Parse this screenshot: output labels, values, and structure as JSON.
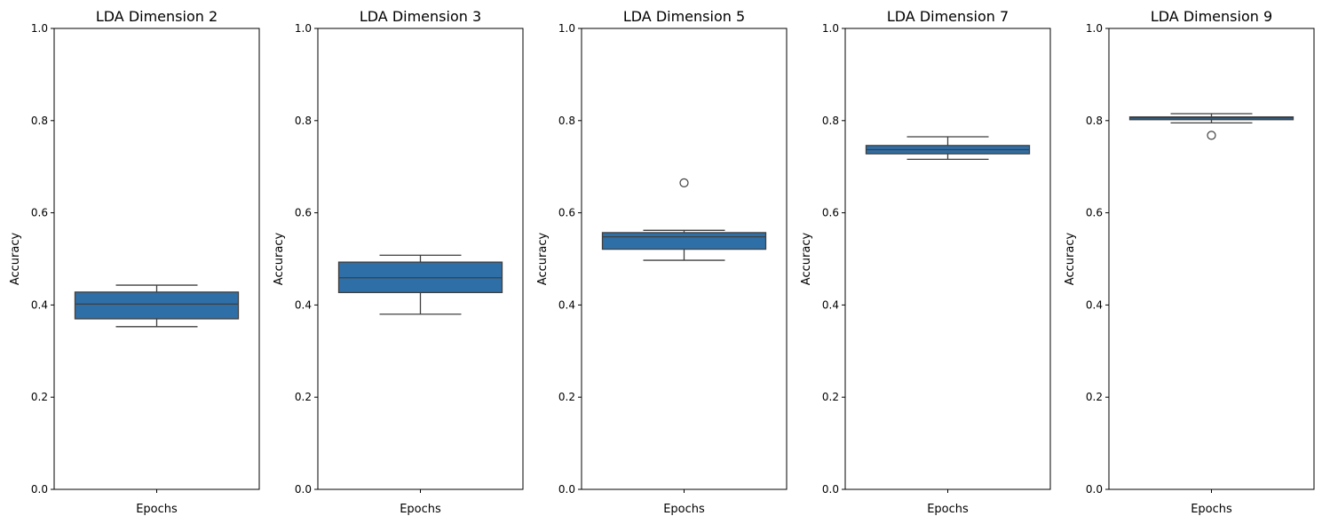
{
  "chart_data": [
    {
      "type": "box",
      "title": "LDA Dimension 2",
      "xlabel": "Epochs",
      "ylabel": "Accuracy",
      "ylim": [
        0,
        1
      ],
      "yticks": [
        "0.0",
        "0.2",
        "0.4",
        "0.6",
        "0.8",
        "1.0"
      ],
      "box": {
        "min": 0.353,
        "q1": 0.37,
        "median": 0.402,
        "q3": 0.428,
        "max": 0.443,
        "outliers": []
      },
      "color": "#2f6fa7"
    },
    {
      "type": "box",
      "title": "LDA Dimension 3",
      "xlabel": "Epochs",
      "ylabel": "Accuracy",
      "ylim": [
        0,
        1
      ],
      "yticks": [
        "0.0",
        "0.2",
        "0.4",
        "0.6",
        "0.8",
        "1.0"
      ],
      "box": {
        "min": 0.38,
        "q1": 0.427,
        "median": 0.459,
        "q3": 0.493,
        "max": 0.508,
        "outliers": []
      },
      "color": "#2f6fa7"
    },
    {
      "type": "box",
      "title": "LDA Dimension 5",
      "xlabel": "Epochs",
      "ylabel": "Accuracy",
      "ylim": [
        0,
        1
      ],
      "yticks": [
        "0.0",
        "0.2",
        "0.4",
        "0.6",
        "0.8",
        "1.0"
      ],
      "box": {
        "min": 0.497,
        "q1": 0.521,
        "median": 0.548,
        "q3": 0.557,
        "max": 0.562,
        "outliers": [
          0.665
        ]
      },
      "color": "#2f6fa7"
    },
    {
      "type": "box",
      "title": "LDA Dimension 7",
      "xlabel": "Epochs",
      "ylabel": "Accuracy",
      "ylim": [
        0,
        1
      ],
      "yticks": [
        "0.0",
        "0.2",
        "0.4",
        "0.6",
        "0.8",
        "1.0"
      ],
      "box": {
        "min": 0.716,
        "q1": 0.728,
        "median": 0.737,
        "q3": 0.746,
        "max": 0.765,
        "outliers": []
      },
      "color": "#2f6fa7"
    },
    {
      "type": "box",
      "title": "LDA Dimension 9",
      "xlabel": "Epochs",
      "ylabel": "Accuracy",
      "ylim": [
        0,
        1
      ],
      "yticks": [
        "0.0",
        "0.2",
        "0.4",
        "0.6",
        "0.8",
        "1.0"
      ],
      "box": {
        "min": 0.795,
        "q1": 0.802,
        "median": 0.806,
        "q3": 0.808,
        "max": 0.815,
        "outliers": [
          0.768
        ]
      },
      "color": "#2f6fa7"
    }
  ]
}
